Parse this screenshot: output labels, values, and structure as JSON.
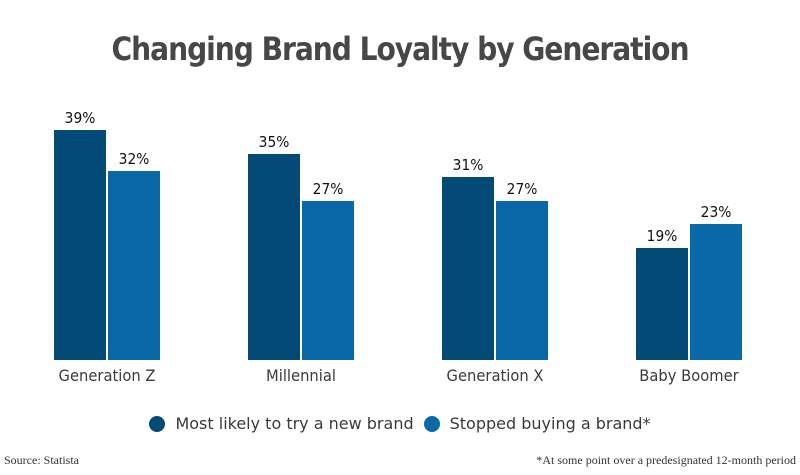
{
  "title": "Changing Brand Loyalty by Generation",
  "colors": {
    "series1": "#034a76",
    "series2": "#0969a8"
  },
  "legend": [
    {
      "label": "Most likely to try a new brand",
      "color": "#034a76"
    },
    {
      "label": "Stopped buying a brand*",
      "color": "#0969a8"
    }
  ],
  "footer": {
    "source": "Source: Statista",
    "note": "*At some point over a predesignated 12-month period"
  },
  "chart_data": {
    "type": "bar",
    "title": "Changing Brand Loyalty by Generation",
    "categories": [
      "Generation Z",
      "Millennial",
      "Generation X",
      "Baby Boomer"
    ],
    "series": [
      {
        "name": "Most likely to try a new brand",
        "values": [
          39,
          35,
          31,
          19
        ],
        "labels": [
          "39%",
          "35%",
          "31%",
          "19%"
        ]
      },
      {
        "name": "Stopped buying a brand*",
        "values": [
          32,
          27,
          27,
          23
        ],
        "labels": [
          "32%",
          "27%",
          "27%",
          "23%"
        ]
      }
    ],
    "xlabel": "",
    "ylabel": "",
    "ylim": [
      0,
      39
    ],
    "grid": false,
    "legend_position": "bottom",
    "unit": "%"
  }
}
